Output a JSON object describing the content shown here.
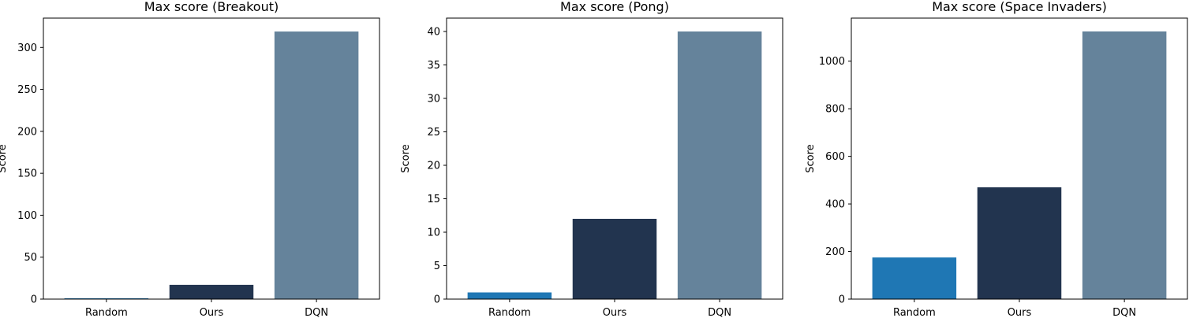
{
  "chart_data": [
    {
      "type": "bar",
      "title": "Max score (Breakout)",
      "xlabel": "",
      "ylabel": "Score",
      "categories": [
        "Random",
        "Ours",
        "DQN"
      ],
      "values": [
        1,
        17,
        319
      ],
      "colors": [
        "#1f77b4",
        "#22344f",
        "#65839b"
      ],
      "ylim": [
        0,
        335
      ],
      "yticks": [
        0,
        50,
        100,
        150,
        200,
        250,
        300
      ],
      "grid": false
    },
    {
      "type": "bar",
      "title": "Max score (Pong)",
      "xlabel": "",
      "ylabel": "Score",
      "categories": [
        "Random",
        "Ours",
        "DQN"
      ],
      "values": [
        1,
        12,
        40
      ],
      "colors": [
        "#1f77b4",
        "#22344f",
        "#65839b"
      ],
      "ylim": [
        0,
        42
      ],
      "yticks": [
        0,
        5,
        10,
        15,
        20,
        25,
        30,
        35,
        40
      ],
      "grid": false
    },
    {
      "type": "bar",
      "title": "Max score (Space Invaders)",
      "xlabel": "",
      "ylabel": "Score",
      "categories": [
        "Random",
        "Ours",
        "DQN"
      ],
      "values": [
        175,
        470,
        1125
      ],
      "colors": [
        "#1f77b4",
        "#22344f",
        "#65839b"
      ],
      "ylim": [
        0,
        1181
      ],
      "yticks": [
        0,
        200,
        400,
        600,
        800,
        1000
      ],
      "grid": false
    }
  ]
}
